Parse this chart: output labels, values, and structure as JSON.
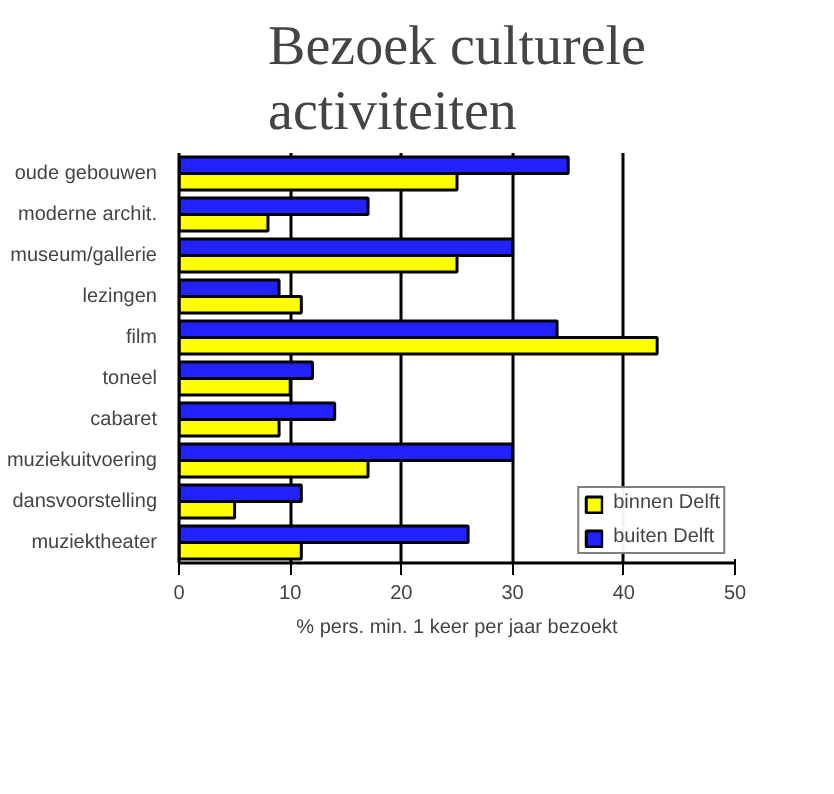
{
  "chart_data": {
    "type": "bar",
    "orientation": "horizontal",
    "title": "Bezoek culturele\nactiviteiten",
    "xlabel": "% pers. min. 1 keer per jaar bezoekt",
    "categories": [
      "oude gebouwen",
      "moderne archit.",
      "museum/gallerie",
      "lezingen",
      "film",
      "toneel",
      "cabaret",
      "muziekuitvoering",
      "dansvoorstelling",
      "muziektheater"
    ],
    "series": [
      {
        "name": "binnen Delft",
        "color": "#ffff00",
        "values": [
          25,
          8,
          25,
          11,
          43,
          10,
          9,
          17,
          5,
          11
        ]
      },
      {
        "name": "buiten Delft",
        "color": "#2222ff",
        "values": [
          35,
          17,
          30,
          9,
          34,
          12,
          14,
          30,
          11,
          26
        ]
      }
    ],
    "xlim": [
      0,
      50
    ],
    "xticks": [
      0,
      10,
      20,
      30,
      40,
      50
    ],
    "grid": "x",
    "legend": "bottom right"
  }
}
